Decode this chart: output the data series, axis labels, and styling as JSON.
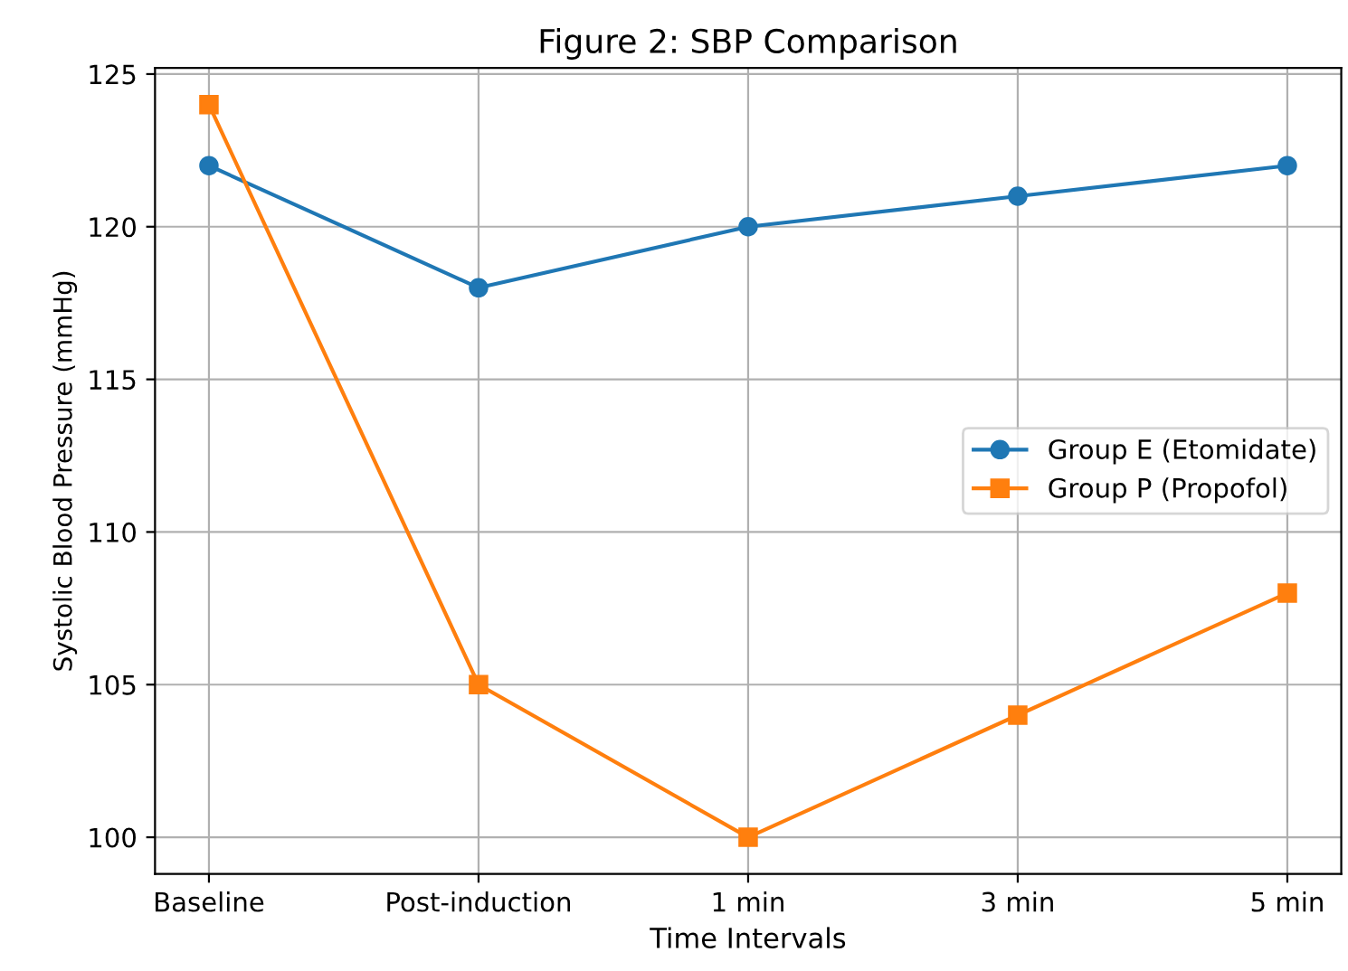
{
  "chart_data": {
    "type": "line",
    "title": "Figure 2: SBP Comparison",
    "xlabel": "Time Intervals",
    "ylabel": "Systolic Blood Pressure (mmHg)",
    "categories": [
      "Baseline",
      "Post-induction",
      "1 min",
      "3 min",
      "5 min"
    ],
    "series": [
      {
        "name": "Group E (Etomidate)",
        "color": "#1f77b4",
        "marker": "circle",
        "values": [
          122,
          118,
          120,
          121,
          122
        ]
      },
      {
        "name": "Group P (Propofol)",
        "color": "#ff7f0e",
        "marker": "square",
        "values": [
          124,
          105,
          100,
          104,
          108
        ]
      }
    ],
    "ylim": [
      98.8,
      125.2
    ],
    "yticks": [
      100,
      105,
      110,
      115,
      120,
      125
    ],
    "grid": true,
    "legend": "right",
    "line_style": "solid"
  }
}
